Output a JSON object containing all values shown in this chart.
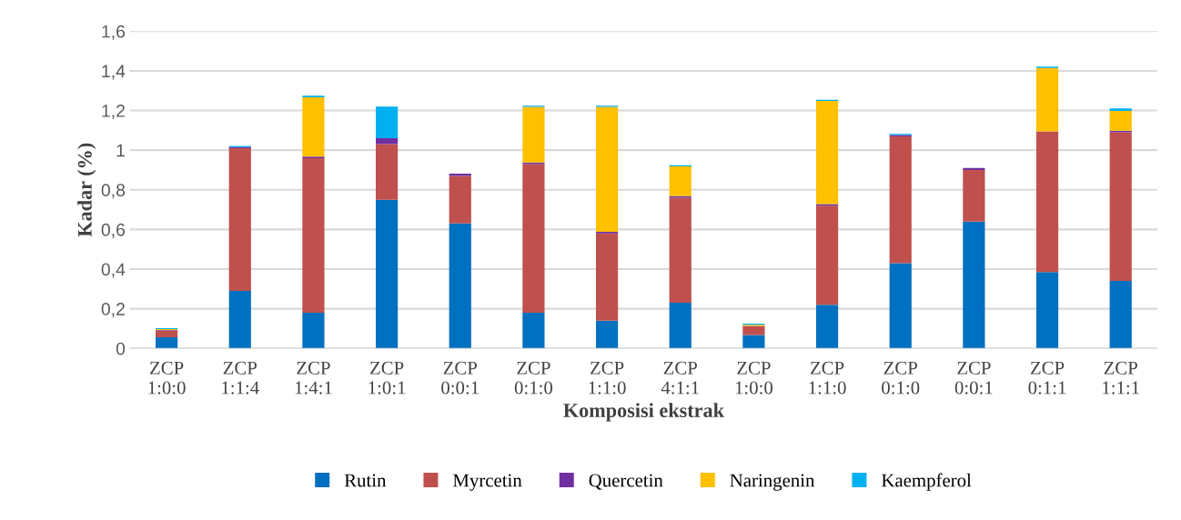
{
  "chart_data": {
    "type": "bar",
    "stacked": true,
    "xlabel": "Komposisi ekstrak",
    "ylabel": "Kadar (%)",
    "categories": [
      "ZCP\n1:0:0",
      "ZCP\n1:1:4",
      "ZCP\n1:4:1",
      "ZCP\n1:0:1",
      "ZCP\n0:0:1",
      "ZCP\n0:1:0",
      "ZCP\n1:1:0",
      "ZCP\n4:1:1",
      "ZCP\n1:0:0",
      "ZCP\n1:1:0",
      "ZCP\n0:1:0",
      "ZCP\n0:0:1",
      "ZCP\n0:1:1",
      "ZCP\n1:1:1"
    ],
    "series": [
      {
        "name": "Rutin",
        "color": "#0070c0",
        "values": [
          0.056,
          0.29,
          0.18,
          0.75,
          0.63,
          0.18,
          0.14,
          0.23,
          0.068,
          0.22,
          0.43,
          0.64,
          0.385,
          0.34
        ]
      },
      {
        "name": "Myrcetin",
        "color": "#c0504d",
        "values": [
          0.035,
          0.72,
          0.78,
          0.28,
          0.24,
          0.75,
          0.44,
          0.53,
          0.046,
          0.5,
          0.64,
          0.26,
          0.71,
          0.75
        ]
      },
      {
        "name": "Quercetin",
        "color": "#7030a0",
        "values": [
          0.002,
          0.006,
          0.007,
          0.03,
          0.012,
          0.008,
          0.008,
          0.008,
          null,
          0.008,
          0.006,
          0.01,
          null,
          0.008
        ]
      },
      {
        "name": "Naringenin",
        "color": "#ffc000",
        "values": [
          0.004,
          0,
          0.3,
          0,
          0,
          0.28,
          0.63,
          0.15,
          0.005,
          0.52,
          0,
          0,
          0.32,
          0.1
        ]
      },
      {
        "name": "Kaempferol",
        "color": "#00b0f0",
        "values": [
          0.005,
          0.005,
          0.008,
          0.16,
          0,
          0.006,
          0.006,
          0.006,
          0.006,
          0.006,
          0.006,
          0,
          0.006,
          0.012
        ]
      }
    ],
    "ylim": [
      0,
      1.6
    ],
    "yticks": [
      0,
      {
        "value": 0.2,
        "label": "0,2"
      },
      {
        "value": 0.4,
        "label": "0,4"
      },
      {
        "value": 0.6,
        "label": "0,6"
      },
      {
        "value": 0.8,
        "label": "0,8"
      },
      1,
      {
        "value": 1.2,
        "label": "1,2"
      },
      {
        "value": 1.4,
        "label": "1,4"
      },
      {
        "value": 1.6,
        "label": "1,6"
      }
    ],
    "grid": "y",
    "legend": "bottom"
  }
}
